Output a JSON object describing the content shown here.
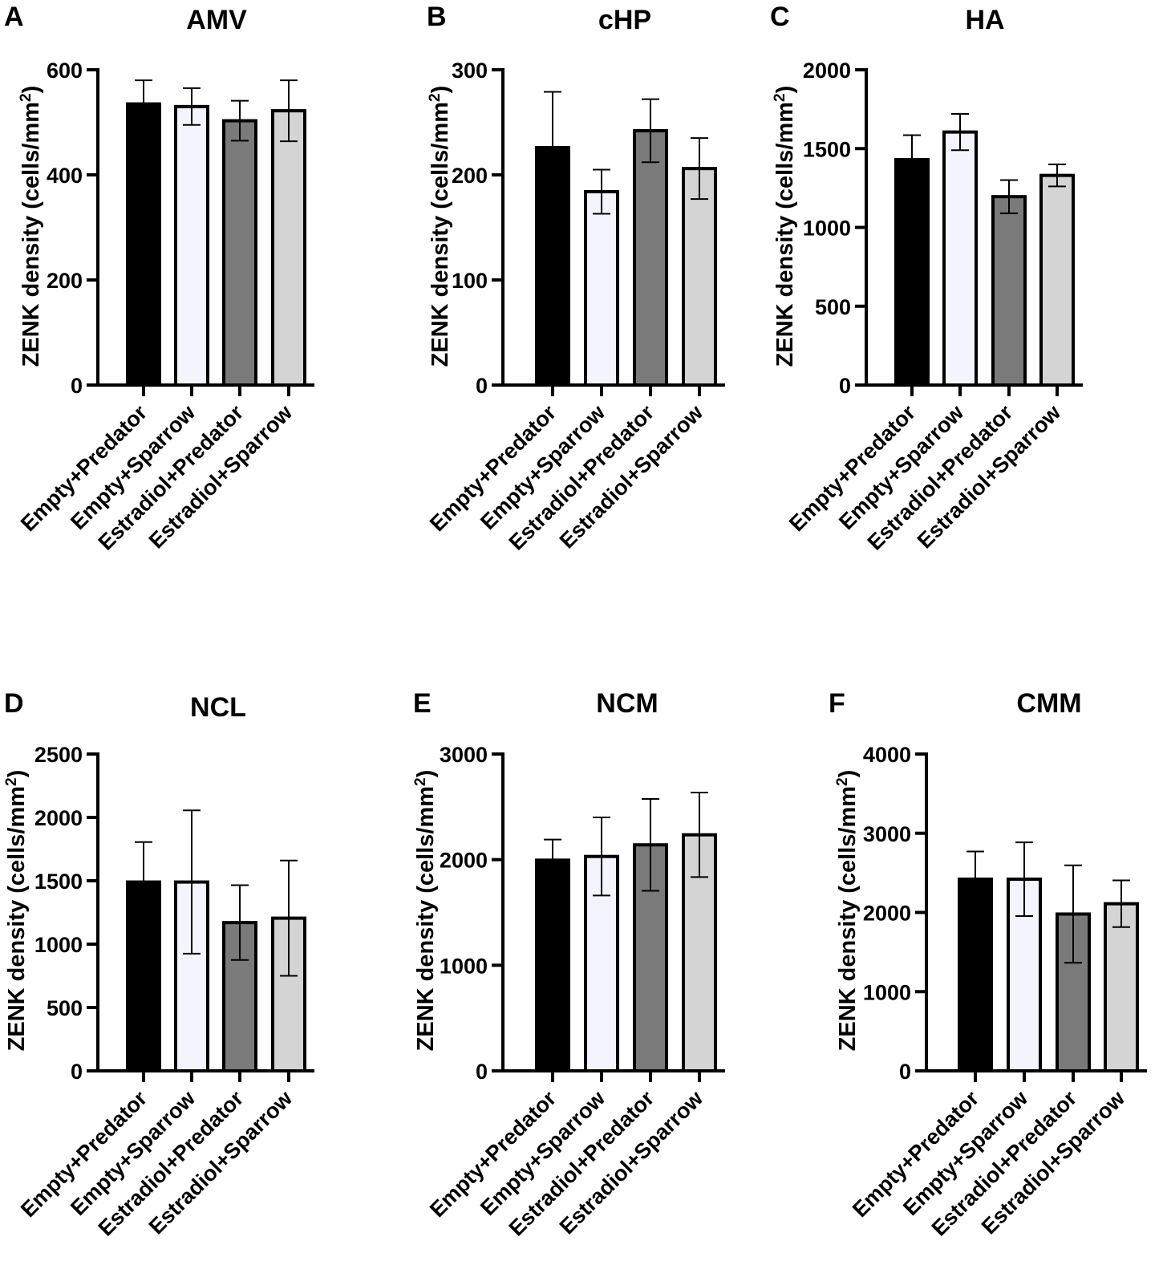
{
  "figure": {
    "ylabel_main": "ZENK density (cells/mm",
    "ylabel_sup": "2",
    "ylabel_close": ")",
    "bar_colors": [
      "#000000",
      "#f4f4ff",
      "#7a7a7a",
      "#d4d4d4"
    ],
    "bar_outline": "#000000"
  },
  "chart_data": [
    {
      "letter": "A",
      "title": "AMV",
      "type": "bar",
      "categories": [
        "Empty+Predator",
        "Empty+Sparrow",
        "Estradiol+Predator",
        "Estradiol+Sparrow"
      ],
      "values": [
        535,
        530,
        503,
        522
      ],
      "errors": [
        45,
        35,
        38,
        58
      ],
      "ylim": [
        0,
        600
      ],
      "yticks": [
        0,
        200,
        400,
        600
      ],
      "ytick_labels": [
        "0",
        "200",
        "400",
        "600"
      ]
    },
    {
      "letter": "B",
      "title": "cHP",
      "type": "bar",
      "categories": [
        "Empty+Predator",
        "Empty+Sparrow",
        "Estradiol+Predator",
        "Estradiol+Sparrow"
      ],
      "values": [
        226,
        184,
        242,
        206
      ],
      "errors": [
        53,
        21,
        30,
        29
      ],
      "ylim": [
        0,
        300
      ],
      "yticks": [
        0,
        100,
        200,
        300
      ],
      "ytick_labels": [
        "0",
        "100",
        "200",
        "300"
      ]
    },
    {
      "letter": "C",
      "title": "HA",
      "type": "bar",
      "categories": [
        "Empty+Predator",
        "Empty+Sparrow",
        "Estradiol+Predator",
        "Estradiol+Sparrow"
      ],
      "values": [
        1430,
        1605,
        1195,
        1330
      ],
      "errors": [
        155,
        115,
        105,
        70
      ],
      "ylim": [
        0,
        2000
      ],
      "yticks": [
        0,
        500,
        1000,
        1500,
        2000
      ],
      "ytick_labels": [
        "0",
        "500",
        "1000",
        "1500",
        "2000"
      ]
    },
    {
      "letter": "D",
      "title": "NCL",
      "type": "bar",
      "categories": [
        "Empty+Predator",
        "Empty+Sparrow",
        "Estradiol+Predator",
        "Estradiol+Sparrow"
      ],
      "values": [
        1490,
        1490,
        1170,
        1205
      ],
      "errors": [
        315,
        565,
        295,
        455
      ],
      "ylim": [
        0,
        2500
      ],
      "yticks": [
        0,
        500,
        1000,
        1500,
        2000,
        2500
      ],
      "ytick_labels": [
        "0",
        "500",
        "1000",
        "1500",
        "2000",
        "2500"
      ]
    },
    {
      "letter": "E",
      "title": "NCM",
      "type": "bar",
      "categories": [
        "Empty+Predator",
        "Empty+Sparrow",
        "Estradiol+Predator",
        "Estradiol+Sparrow"
      ],
      "values": [
        1995,
        2030,
        2140,
        2235
      ],
      "errors": [
        195,
        370,
        435,
        400
      ],
      "ylim": [
        0,
        3000
      ],
      "yticks": [
        0,
        1000,
        2000,
        3000
      ],
      "ytick_labels": [
        "0",
        "1000",
        "2000",
        "3000"
      ]
    },
    {
      "letter": "F",
      "title": "CMM",
      "type": "bar",
      "categories": [
        "Empty+Predator",
        "Empty+Sparrow",
        "Estradiol+Predator",
        "Estradiol+Sparrow"
      ],
      "values": [
        2420,
        2420,
        1980,
        2110
      ],
      "errors": [
        350,
        465,
        615,
        295
      ],
      "ylim": [
        0,
        4000
      ],
      "yticks": [
        0,
        1000,
        2000,
        3000,
        4000
      ],
      "ytick_labels": [
        "0",
        "1000",
        "2000",
        "3000",
        "4000"
      ]
    }
  ]
}
